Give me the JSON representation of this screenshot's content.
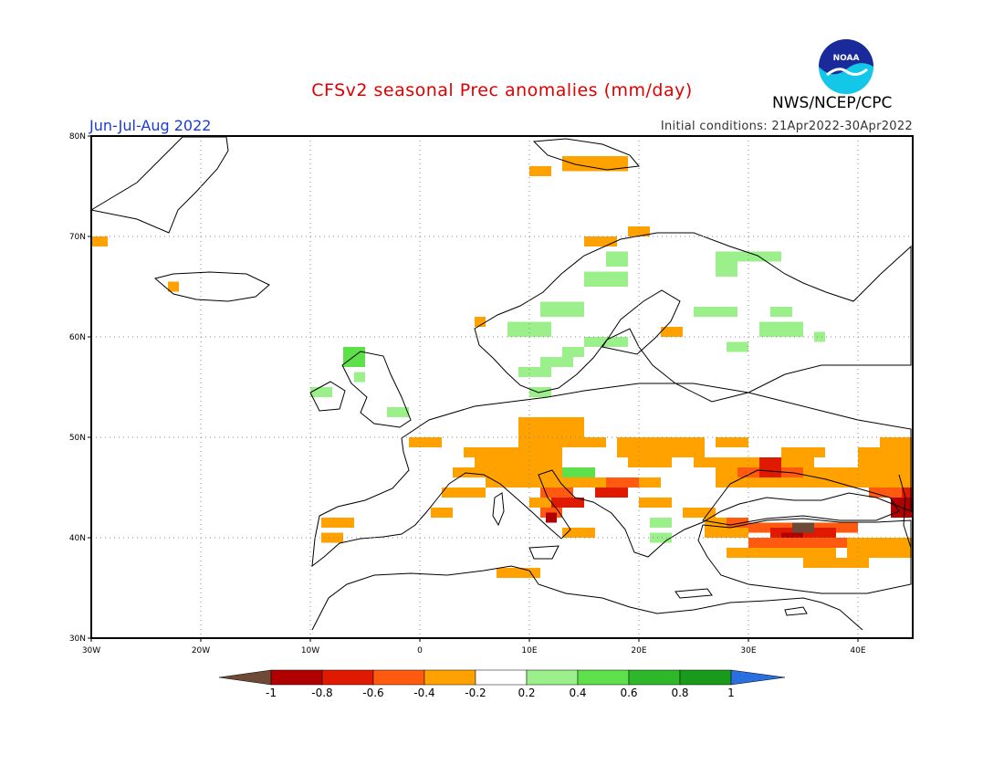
{
  "header": {
    "title": "CFSv2 seasonal Prec anomalies (mm/day)",
    "season": "Jun-Jul-Aug 2022",
    "initial_conditions": "Initial conditions: 21Apr2022-30Apr2022",
    "agency": "NWS/NCEP/CPC",
    "logo_text": "NOAA"
  },
  "map": {
    "lon_ticks": [
      "30W",
      "20W",
      "10W",
      "0",
      "10E",
      "20E",
      "30E",
      "40E"
    ],
    "lat_ticks": [
      "80N",
      "70N",
      "60N",
      "50N",
      "40N",
      "30N"
    ],
    "lon_range": [
      -30,
      45
    ],
    "lat_range": [
      30,
      80
    ]
  },
  "colorbar": {
    "labels": [
      "-1",
      "-0.8",
      "-0.6",
      "-0.4",
      "-0.2",
      "0.2",
      "0.4",
      "0.6",
      "0.8",
      "1"
    ],
    "colors": {
      "below_-1": "#6e4a36",
      "-1_-0.8": "#b00000",
      "-0.8_-0.6": "#e01a00",
      "-0.6_-0.4": "#ff5a10",
      "-0.4_-0.2": "#ffa200",
      "-0.2_0.2": "#ffffff",
      "0.2_0.4": "#9bf08c",
      "0.4_0.6": "#5ee04a",
      "0.6_0.8": "#2db82a",
      "0.8_1": "#1a9a1a",
      "above_1": "#2a6fe0"
    }
  }
}
